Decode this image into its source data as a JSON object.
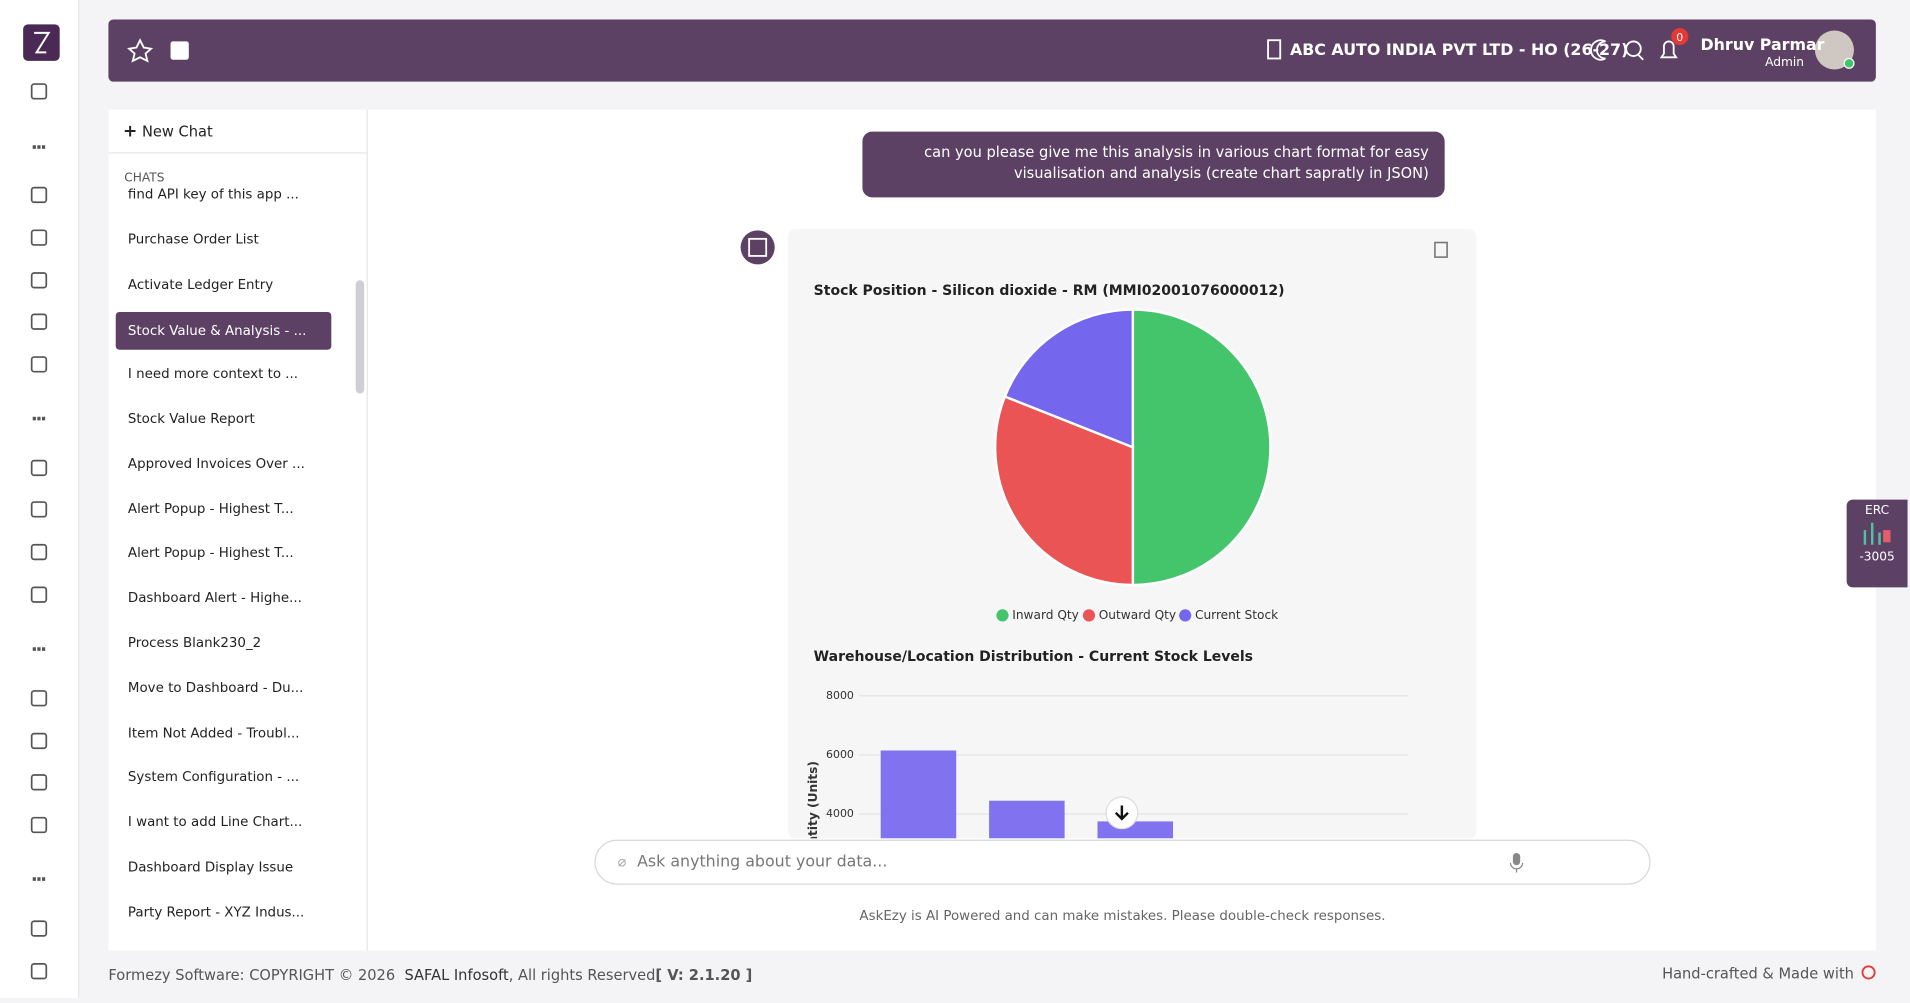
{
  "header": {
    "company": "ABC AUTO INDIA PVT LTD - HO (26-27)",
    "notifications": "0",
    "user_name": "Dhruv Parmar",
    "user_role": "Admin"
  },
  "sidebar": {
    "new_chat": "New Chat",
    "section": "CHATS",
    "chats": [
      "find API key of this app ...",
      "Purchase Order List",
      "Activate Ledger Entry",
      "Stock Value & Analysis - ...",
      "I need more context to ...",
      "Stock Value Report",
      "Approved Invoices Over ...",
      "Alert Popup - Highest T...",
      "Alert Popup - Highest T...",
      "Dashboard Alert - Highe...",
      "Process Blank230_2",
      "Move to Dashboard - Du...",
      "Item Not Added - Troubl...",
      "System Configuration - ...",
      "I want to add Line Chart...",
      "Dashboard Display Issue",
      "Party Report - XYZ Indus..."
    ],
    "active": 3
  },
  "chat": {
    "user_message": "can you please give me this analysis in various chart format for easy visualisation and analysis (create chart sapratly in JSON)",
    "input_placeholder": "Ask anything about your data...",
    "disclaimer": "AskEzy is AI Powered and can make mistakes. Please double-check responses."
  },
  "chart_data": [
    {
      "type": "pie",
      "title": "Stock Position - Silicon dioxide - RM (MMI02001076000012)",
      "categories": [
        "Inward Qty",
        "Outward Qty",
        "Current Stock"
      ],
      "values": [
        50,
        31,
        19
      ],
      "colors": [
        "#44c56c",
        "#ea5455",
        "#7566ee"
      ]
    },
    {
      "type": "bar",
      "title": "Warehouse/Location Distribution - Current Stock Levels",
      "y_label": "Quantity (Units)",
      "categories": [
        null,
        null,
        null
      ],
      "values": [
        6150,
        4450,
        3750
      ],
      "color": "#8173ef",
      "ylim": [
        0,
        8000
      ],
      "yticks": [
        4000,
        6000,
        8000
      ],
      "grid": true
    }
  ],
  "widget": {
    "label": "ERC",
    "value": "-3005"
  },
  "footer": {
    "copyright": "Formezy Software: COPYRIGHT © 2026",
    "company": "SAFAL Infosoft",
    "rights": ", All rights Reserved",
    "version": "[ V: 2.1.20 ]",
    "made_with": "Hand-crafted & Made with"
  }
}
